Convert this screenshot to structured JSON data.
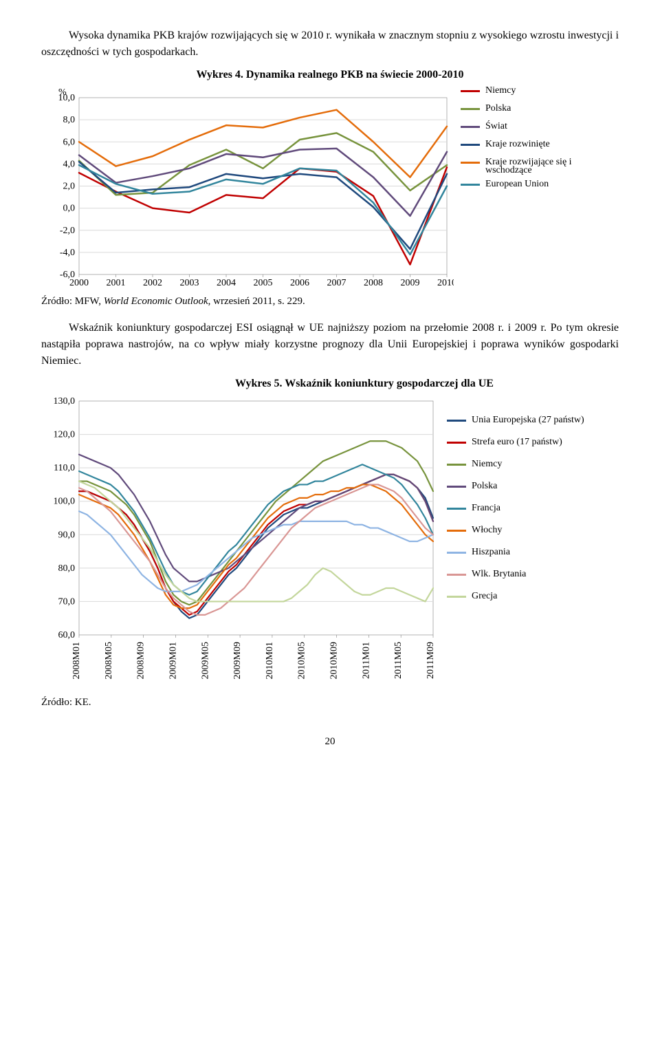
{
  "para1": "Wysoka dynamika PKB krajów rozwijających się w 2010 r. wynikała w znacznym stopniu z wysokiego wzrostu inwestycji i oszczędności w tych gospodarkach.",
  "chart1": {
    "title": "Wykres 4. Dynamika realnego PKB na świecie 2000-2010",
    "type": "line",
    "y_unit_label": "%",
    "x_labels": [
      "2000",
      "2001",
      "2002",
      "2003",
      "2004",
      "2005",
      "2006",
      "2007",
      "2008",
      "2009",
      "2010"
    ],
    "y_ticks": [
      "10,0",
      "8,0",
      "6,0",
      "4,0",
      "2,0",
      "0,0",
      "-2,0",
      "-4,0",
      "-6,0"
    ],
    "ylim": [
      -6,
      10
    ],
    "xlim": [
      0,
      10
    ],
    "grid_color": "#d9d9d9",
    "background_color": "#ffffff",
    "line_width": 2.5,
    "series": [
      {
        "name": "Niemcy",
        "color": "#c00000",
        "values": [
          3.2,
          1.5,
          0.0,
          -0.4,
          1.2,
          0.9,
          3.6,
          3.3,
          1.1,
          -5.1,
          3.7
        ]
      },
      {
        "name": "Polska",
        "color": "#77933c",
        "values": [
          4.3,
          1.2,
          1.4,
          3.9,
          5.3,
          3.6,
          6.2,
          6.8,
          5.1,
          1.6,
          3.9
        ]
      },
      {
        "name": "Świat",
        "color": "#604a7b",
        "values": [
          4.8,
          2.3,
          2.9,
          3.6,
          4.9,
          4.6,
          5.3,
          5.4,
          2.8,
          -0.7,
          5.1
        ]
      },
      {
        "name": "Kraje rozwinięte",
        "color": "#1f497d",
        "values": [
          4.2,
          1.4,
          1.7,
          1.9,
          3.1,
          2.7,
          3.1,
          2.8,
          0.1,
          -3.7,
          3.1
        ]
      },
      {
        "name": "Kraje rozwijające się i wschodzące",
        "color": "#e46c0a",
        "values": [
          6.0,
          3.8,
          4.7,
          6.2,
          7.5,
          7.3,
          8.2,
          8.9,
          6.0,
          2.8,
          7.4
        ]
      },
      {
        "name": "European Union",
        "color": "#31859c",
        "values": [
          3.9,
          2.2,
          1.3,
          1.5,
          2.6,
          2.2,
          3.6,
          3.4,
          0.5,
          -4.2,
          2.0
        ]
      }
    ],
    "legend_labels": {
      "niemcy": "Niemcy",
      "polska": "Polska",
      "swiat": "Świat",
      "rozwiniete": "Kraje rozwinięte",
      "rozwijajace_l1": "Kraje rozwijające się i",
      "rozwijajace_l2": "wschodzące",
      "eu": "European Union"
    }
  },
  "source1_prefix": "Źródło: MFW, ",
  "source1_italic": "World Economic Outlook",
  "source1_suffix": ", wrzesień 2011, s. 229.",
  "para2": "Wskaźnik koniunktury gospodarczej ESI osiągnął w UE najniższy poziom na przełomie 2008 r. i 2009 r. Po tym okresie nastąpiła poprawa nastrojów, na co wpływ miały korzystne prognozy dla Unii Europejskiej i poprawa wyników gospodarki Niemiec.",
  "chart2": {
    "title": "Wykres 5. Wskaźnik koniunktury gospodarczej dla UE",
    "type": "line",
    "x_labels": [
      "2008M01",
      "2008M05",
      "2008M09",
      "2009M01",
      "2009M05",
      "2009M09",
      "2010M01",
      "2010M05",
      "2010M09",
      "2011M01",
      "2011M05",
      "2011M09"
    ],
    "y_ticks": [
      "130,0",
      "120,0",
      "110,0",
      "100,0",
      "90,0",
      "80,0",
      "70,0",
      "60,0"
    ],
    "ylim": [
      60,
      130
    ],
    "xlim": [
      0,
      45
    ],
    "grid_color": "#d9d9d9",
    "background_color": "#ffffff",
    "line_width": 2.2,
    "series": [
      {
        "name": "Unia Europejska (27 państw)",
        "color": "#1f497d",
        "values": [
          103,
          103,
          102,
          101,
          100,
          98,
          96,
          93,
          89,
          85,
          80,
          74,
          70,
          67,
          65,
          66,
          69,
          72,
          75,
          78,
          80,
          83,
          86,
          89,
          92,
          94,
          96,
          97,
          98,
          98,
          99,
          100,
          101,
          102,
          103,
          104,
          105,
          106,
          107,
          108,
          108,
          107,
          106,
          104,
          101,
          95
        ]
      },
      {
        "name": "Strefa euro (17 państw)",
        "color": "#c00000",
        "values": [
          103,
          103,
          102,
          101,
          100,
          98,
          96,
          93,
          89,
          85,
          80,
          74,
          70,
          68,
          66,
          67,
          70,
          73,
          76,
          79,
          81,
          84,
          87,
          90,
          93,
          95,
          97,
          98,
          99,
          99,
          100,
          100,
          101,
          102,
          103,
          104,
          105,
          106,
          107,
          108,
          108,
          107,
          106,
          104,
          100,
          94
        ]
      },
      {
        "name": "Niemcy",
        "color": "#77933c",
        "values": [
          106,
          106,
          105,
          104,
          103,
          101,
          99,
          96,
          92,
          88,
          82,
          76,
          72,
          70,
          69,
          70,
          73,
          76,
          79,
          82,
          85,
          88,
          91,
          94,
          97,
          100,
          102,
          104,
          106,
          108,
          110,
          112,
          113,
          114,
          115,
          116,
          117,
          118,
          118,
          118,
          117,
          116,
          114,
          112,
          108,
          103
        ]
      },
      {
        "name": "Polska",
        "color": "#604a7b",
        "values": [
          114,
          113,
          112,
          111,
          110,
          108,
          105,
          102,
          98,
          94,
          89,
          84,
          80,
          78,
          76,
          76,
          77,
          78,
          79,
          80,
          82,
          84,
          86,
          88,
          90,
          92,
          94,
          96,
          98,
          99,
          100,
          100,
          101,
          102,
          103,
          104,
          105,
          106,
          107,
          108,
          108,
          107,
          106,
          104,
          100,
          94
        ]
      },
      {
        "name": "Francja",
        "color": "#31859c",
        "values": [
          109,
          108,
          107,
          106,
          105,
          103,
          100,
          97,
          93,
          89,
          84,
          79,
          75,
          73,
          72,
          73,
          76,
          79,
          82,
          85,
          87,
          90,
          93,
          96,
          99,
          101,
          103,
          104,
          105,
          105,
          106,
          106,
          107,
          108,
          109,
          110,
          111,
          110,
          109,
          108,
          107,
          105,
          102,
          99,
          95,
          90
        ]
      },
      {
        "name": "Włochy",
        "color": "#e46c0a",
        "values": [
          102,
          101,
          100,
          99,
          98,
          96,
          93,
          90,
          86,
          82,
          77,
          72,
          69,
          68,
          68,
          69,
          72,
          75,
          78,
          81,
          83,
          86,
          89,
          92,
          95,
          97,
          99,
          100,
          101,
          101,
          102,
          102,
          103,
          103,
          104,
          104,
          105,
          105,
          104,
          103,
          101,
          99,
          96,
          93,
          90,
          88
        ]
      },
      {
        "name": "Hiszpania",
        "color": "#8eb4e3",
        "values": [
          97,
          96,
          94,
          92,
          90,
          87,
          84,
          81,
          78,
          76,
          74,
          73,
          73,
          73,
          74,
          75,
          77,
          79,
          81,
          83,
          85,
          87,
          89,
          90,
          91,
          92,
          93,
          93,
          94,
          94,
          94,
          94,
          94,
          94,
          94,
          93,
          93,
          92,
          92,
          91,
          90,
          89,
          88,
          88,
          89,
          90
        ]
      },
      {
        "name": "Wlk. Brytania",
        "color": "#d99694",
        "values": [
          104,
          103,
          101,
          99,
          97,
          94,
          91,
          88,
          85,
          82,
          78,
          74,
          71,
          69,
          67,
          66,
          66,
          67,
          68,
          70,
          72,
          74,
          77,
          80,
          83,
          86,
          89,
          92,
          94,
          96,
          98,
          99,
          100,
          101,
          102,
          103,
          104,
          105,
          105,
          104,
          103,
          101,
          98,
          95,
          92,
          90
        ]
      },
      {
        "name": "Grecja",
        "color": "#c3d69b",
        "values": [
          106,
          105,
          104,
          102,
          100,
          98,
          95,
          92,
          89,
          86,
          82,
          78,
          75,
          73,
          71,
          70,
          70,
          70,
          70,
          70,
          70,
          70,
          70,
          70,
          70,
          70,
          70,
          71,
          73,
          75,
          78,
          80,
          79,
          77,
          75,
          73,
          72,
          72,
          73,
          74,
          74,
          73,
          72,
          71,
          70,
          74
        ]
      }
    ],
    "legend_labels": {
      "eu27": "Unia Europejska (27 państw)",
      "euro17": "Strefa euro (17 państw)",
      "niemcy": "Niemcy",
      "polska": "Polska",
      "francja": "Francja",
      "wlochy": "Włochy",
      "hiszpania": "Hiszpania",
      "uk": "Wlk. Brytania",
      "grecja": "Grecja"
    }
  },
  "source2": "Źródło: KE.",
  "page_number": "20"
}
